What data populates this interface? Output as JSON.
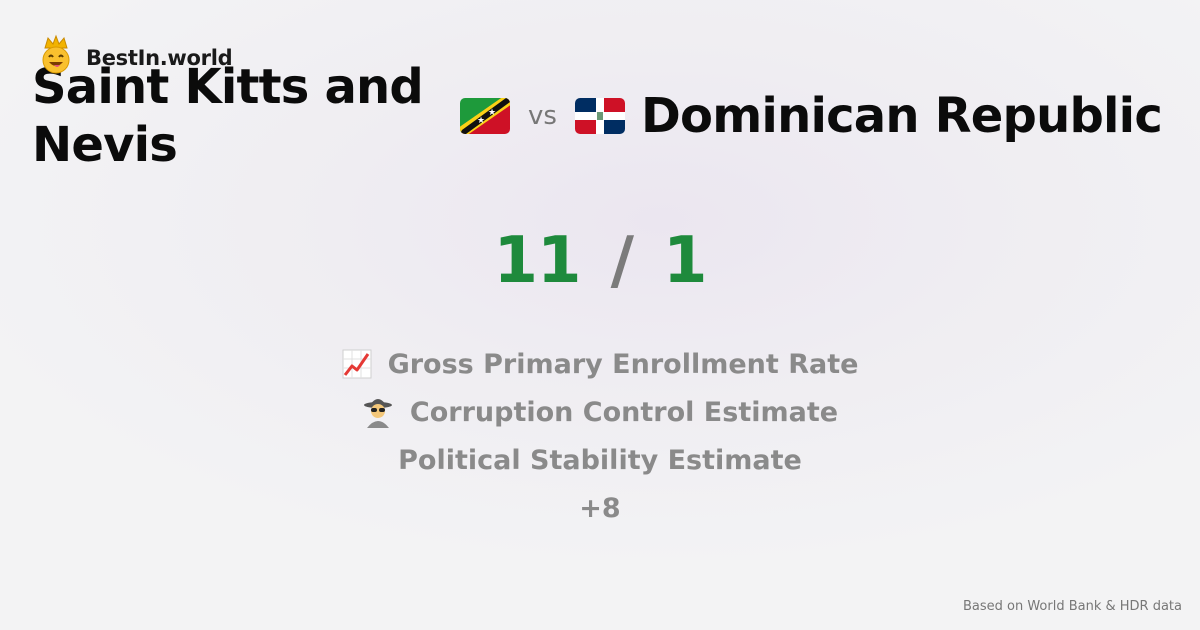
{
  "brand": {
    "name": "BestIn.world",
    "icon": "crown-emoji-icon"
  },
  "left_country": {
    "name": "Saint Kitts and Nevis",
    "flag": "saint-kitts-and-nevis-flag-icon"
  },
  "vs_label": "vs",
  "right_country": {
    "name": "Dominican Republic",
    "flag": "dominican-republic-flag-icon"
  },
  "score": {
    "left": "11",
    "separator": "/",
    "right": "1"
  },
  "metrics": [
    {
      "label": "Gross Primary Enrollment Rate",
      "icon": "chart-increasing-icon"
    },
    {
      "label": "Corruption Control Estimate",
      "icon": "detective-icon"
    },
    {
      "label": "Political Stability Estimate"
    },
    {
      "label": "+8"
    }
  ],
  "footer": "Based on World Bank & HDR data",
  "colors": {
    "score": "#1e8a3c",
    "separator": "#7b7b7b",
    "metric_text": "#8a8a8a"
  }
}
